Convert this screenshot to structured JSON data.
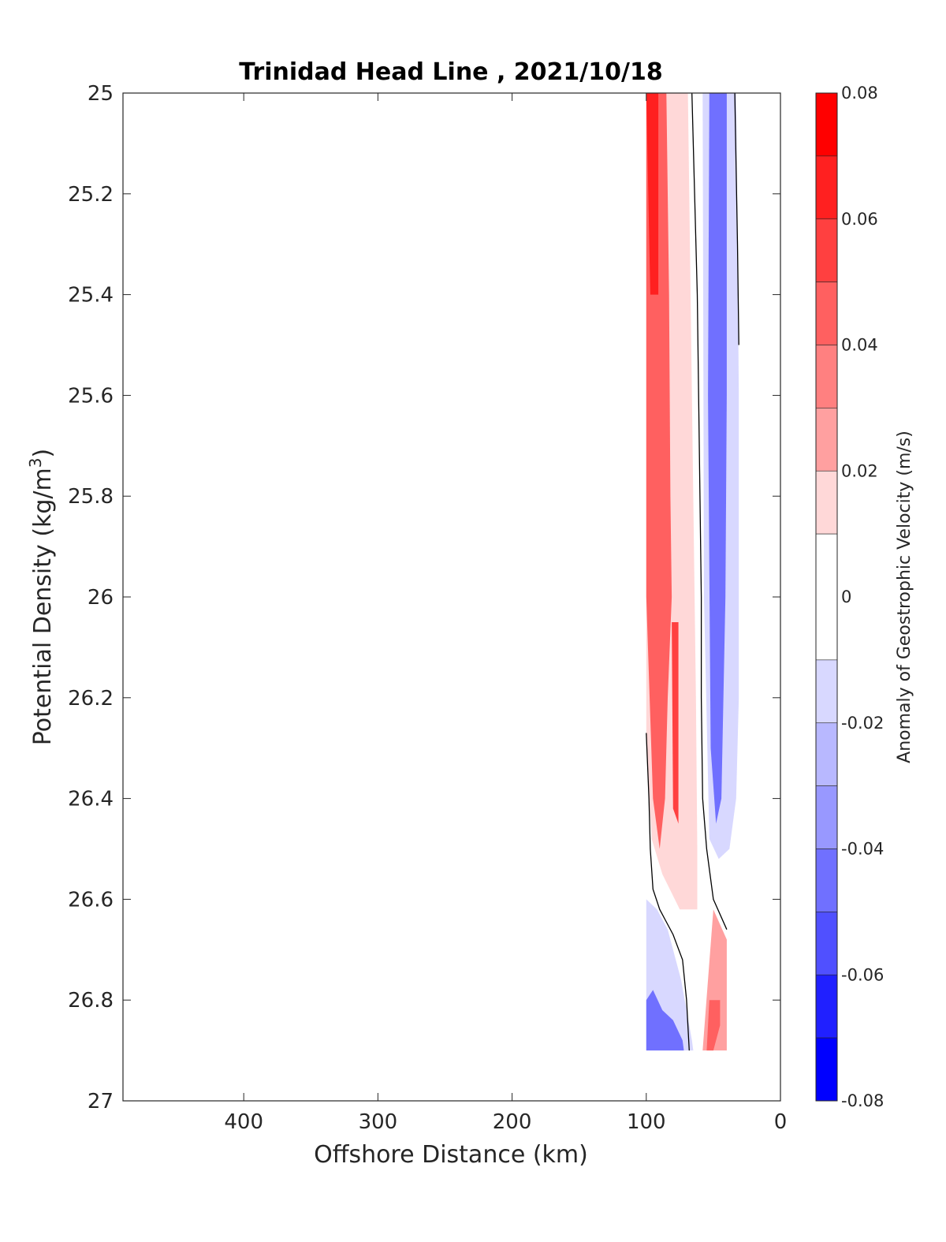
{
  "chart_data": {
    "type": "heatmap",
    "title": "Trinidad Head Line , 2021/10/18",
    "xlabel": "Offshore Distance (km)",
    "ylabel_main": "Potential Density (kg/m",
    "ylabel_sup": "3",
    "ylabel_end": ")",
    "xlim": [
      490,
      0
    ],
    "ylim": [
      25,
      27
    ],
    "x_reversed": true,
    "y_reversed": true,
    "x_ticks": [
      400,
      300,
      200,
      100,
      0
    ],
    "x_tick_labels": [
      "400",
      "300",
      "200",
      "100",
      "0"
    ],
    "y_ticks": [
      25,
      25.2,
      25.4,
      25.6,
      25.8,
      26,
      26.2,
      26.4,
      26.6,
      26.8,
      27
    ],
    "y_tick_labels": [
      "25",
      "25.2",
      "25.4",
      "25.6",
      "25.8",
      "26",
      "26.2",
      "26.4",
      "26.6",
      "26.8",
      "27"
    ],
    "colorbar": {
      "label": "Anomaly of Geostrophic Velocity (m/s)",
      "range": [
        -0.08,
        0.08
      ],
      "ticks": [
        0.08,
        0.06,
        0.04,
        0.02,
        0,
        -0.02,
        -0.04,
        -0.06,
        -0.08
      ],
      "tick_labels": [
        "0.08",
        "0.06",
        "0.04",
        "0.02",
        "0",
        "-0.02",
        "-0.04",
        "-0.06",
        "-0.08"
      ],
      "levels": [
        {
          "range": [
            0.07,
            0.08
          ],
          "color": "#ff0000"
        },
        {
          "range": [
            0.06,
            0.07
          ],
          "color": "#ff2020"
        },
        {
          "range": [
            0.05,
            0.06
          ],
          "color": "#ff4040"
        },
        {
          "range": [
            0.04,
            0.05
          ],
          "color": "#ff6060"
        },
        {
          "range": [
            0.03,
            0.04
          ],
          "color": "#ff8080"
        },
        {
          "range": [
            0.02,
            0.03
          ],
          "color": "#ffa0a0"
        },
        {
          "range": [
            0.01,
            0.02
          ],
          "color": "#ffd8d8"
        },
        {
          "range": [
            -0.01,
            0.01
          ],
          "color": "#ffffff"
        },
        {
          "range": [
            -0.02,
            -0.01
          ],
          "color": "#d8d8ff"
        },
        {
          "range": [
            -0.03,
            -0.02
          ],
          "color": "#b8b8ff"
        },
        {
          "range": [
            -0.04,
            -0.03
          ],
          "color": "#9898ff"
        },
        {
          "range": [
            -0.05,
            -0.04
          ],
          "color": "#7070ff"
        },
        {
          "range": [
            -0.06,
            -0.05
          ],
          "color": "#5050ff"
        },
        {
          "range": [
            -0.07,
            -0.06
          ],
          "color": "#2020ff"
        },
        {
          "range": [
            -0.08,
            -0.07
          ],
          "color": "#0000ff"
        }
      ]
    },
    "data_extent": {
      "x": [
        30,
        100
      ],
      "y": [
        25,
        26.9
      ]
    },
    "regions": [
      {
        "name": "positive-core-band",
        "value": 0.065,
        "x": [
          100,
          91,
          91,
          97,
          100
        ],
        "y": [
          25,
          25,
          25.4,
          25.4,
          25
        ]
      },
      {
        "name": "positive-band",
        "value": 0.045,
        "x": [
          100,
          85,
          83,
          82,
          81,
          84,
          86,
          90,
          95,
          100
        ],
        "y": [
          25,
          25,
          25.4,
          25.8,
          26.0,
          26.2,
          26.4,
          26.5,
          26.4,
          26.0
        ]
      },
      {
        "name": "positive-deep-core",
        "value": 0.055,
        "x": [
          81,
          76,
          76,
          80,
          81
        ],
        "y": [
          26.05,
          26.05,
          26.45,
          26.42,
          26.05
        ]
      },
      {
        "name": "positive-outer-band",
        "value": 0.015,
        "x": [
          100,
          69,
          67,
          65,
          63,
          62,
          62,
          75,
          88,
          96,
          100
        ],
        "y": [
          25,
          25,
          25.4,
          25.8,
          26.2,
          26.5,
          26.62,
          26.62,
          26.55,
          26.48,
          26.3
        ]
      },
      {
        "name": "negative-core-band",
        "value": -0.045,
        "x": [
          53,
          40,
          40,
          41,
          44,
          48,
          52,
          54,
          53
        ],
        "y": [
          25,
          25,
          25.6,
          26.0,
          26.4,
          26.45,
          26.3,
          25.6,
          25
        ]
      },
      {
        "name": "negative-outer-band",
        "value": -0.02,
        "x": [
          58,
          33,
          31,
          31,
          33,
          38,
          46,
          53,
          57,
          58
        ],
        "y": [
          25,
          25,
          25.6,
          26.2,
          26.4,
          26.5,
          26.52,
          26.48,
          26.0,
          25
        ]
      },
      {
        "name": "negative-deep-core",
        "value": -0.045,
        "x": [
          100,
          95,
          88,
          80,
          73,
          72,
          73,
          100
        ],
        "y": [
          26.8,
          26.78,
          26.82,
          26.84,
          26.88,
          26.9,
          26.9,
          26.9
        ]
      },
      {
        "name": "negative-deep-outer",
        "value": -0.02,
        "x": [
          100,
          100,
          92,
          84,
          78,
          74,
          70,
          66,
          65,
          100
        ],
        "y": [
          26.9,
          26.6,
          26.62,
          26.66,
          26.72,
          26.76,
          26.82,
          26.88,
          26.9,
          26.9
        ]
      },
      {
        "name": "positive-deep-onshore",
        "value": 0.045,
        "x": [
          53,
          45,
          45,
          50,
          55,
          53
        ],
        "y": [
          26.8,
          26.8,
          26.85,
          26.9,
          26.9,
          26.8
        ]
      },
      {
        "name": "positive-deep-onshore-outer",
        "value": 0.02,
        "x": [
          50,
          40,
          40,
          45,
          52,
          58,
          50
        ],
        "y": [
          26.62,
          26.68,
          26.9,
          26.9,
          26.9,
          26.9,
          26.62
        ]
      }
    ],
    "zero_contours": [
      {
        "x": [
          66,
          64,
          62,
          61,
          60,
          59,
          59,
          58,
          55,
          50,
          40
        ],
        "y": [
          25,
          25.2,
          25.4,
          25.6,
          25.8,
          26.0,
          26.2,
          26.4,
          26.5,
          26.6,
          26.66
        ]
      },
      {
        "x": [
          34,
          33,
          32,
          31
        ],
        "y": [
          25,
          25.15,
          25.3,
          25.5
        ]
      },
      {
        "x": [
          100,
          98,
          97,
          95,
          90,
          86,
          80,
          73,
          70,
          68
        ],
        "y": [
          26.27,
          26.4,
          26.5,
          26.58,
          26.62,
          26.64,
          26.67,
          26.72,
          26.8,
          26.9
        ]
      }
    ]
  }
}
